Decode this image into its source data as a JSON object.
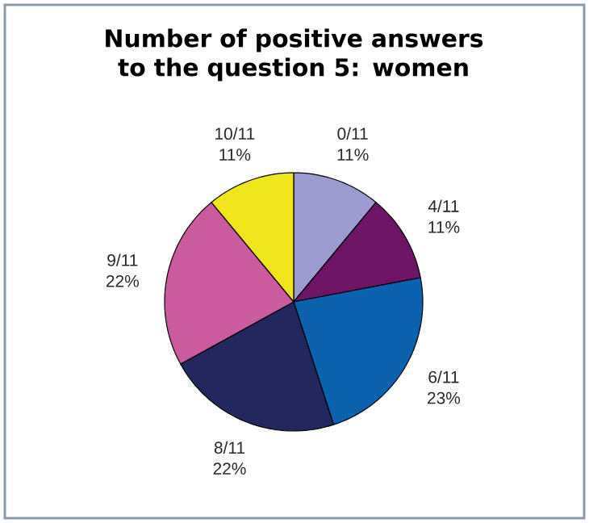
{
  "chart_data": {
    "type": "pie",
    "title": "Number of positive answers to the question 5: women",
    "categories": [
      "0/11",
      "4/11",
      "6/11",
      "8/11",
      "9/11",
      "10/11"
    ],
    "values": [
      11,
      11,
      23,
      22,
      22,
      11
    ],
    "value_labels": [
      "11%",
      "11%",
      "23%",
      "22%",
      "22%",
      "11%"
    ],
    "colors": [
      "#9b9bd0",
      "#6e1464",
      "#0b62ae",
      "#22285e",
      "#cc5a9e",
      "#eee61a"
    ]
  }
}
